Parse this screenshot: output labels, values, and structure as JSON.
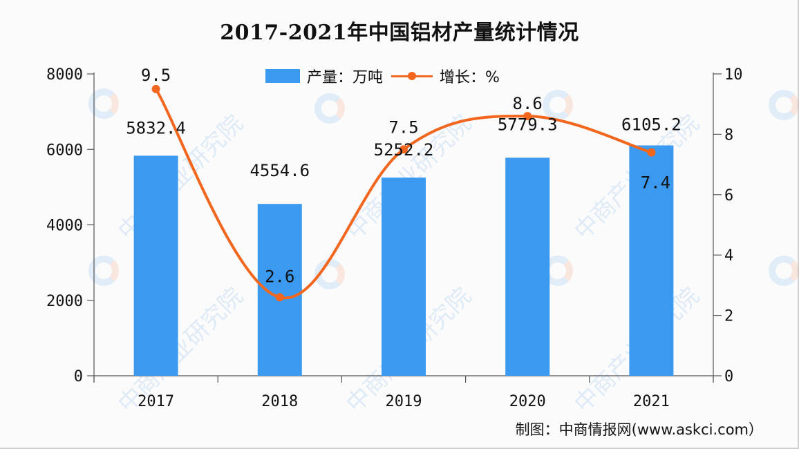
{
  "title": "2017-2021年中国铝材产量统计情况",
  "legend": {
    "bar_label": "产量：万吨",
    "line_label": "增长：%"
  },
  "footer": "制图：中商情报网(www.askci.com）",
  "watermark": "中商产业研究院",
  "colors": {
    "bar": "#3b99ef",
    "line": "#f2661e",
    "axis": "#555555"
  },
  "chart_data": {
    "type": "bar",
    "title": "2017-2021年中国铝材产量统计情况",
    "categories": [
      "2017",
      "2018",
      "2019",
      "2020",
      "2021"
    ],
    "series": [
      {
        "name": "产量：万吨",
        "type": "bar",
        "axis": "left",
        "values": [
          5832.4,
          4554.6,
          5252.2,
          5779.3,
          6105.2
        ]
      },
      {
        "name": "增长：%",
        "type": "line",
        "axis": "right",
        "smooth": true,
        "values": [
          9.5,
          2.6,
          7.5,
          8.6,
          7.4
        ]
      }
    ],
    "bar_labels": [
      "5832.4",
      "4554.6",
      "5252.2",
      "5779.3",
      "6105.2"
    ],
    "line_labels": [
      "9.5",
      "2.6",
      "7.5",
      "8.6",
      "7.4"
    ],
    "xlabel": "",
    "ylabel": "",
    "ylim": [
      0,
      8000
    ],
    "yticks": [
      "0",
      "2000",
      "4000",
      "6000",
      "8000"
    ],
    "y2lim": [
      0,
      10
    ],
    "y2ticks": [
      "0",
      "2",
      "4",
      "6",
      "8",
      "10"
    ],
    "grid": false,
    "legend_position": "top"
  }
}
